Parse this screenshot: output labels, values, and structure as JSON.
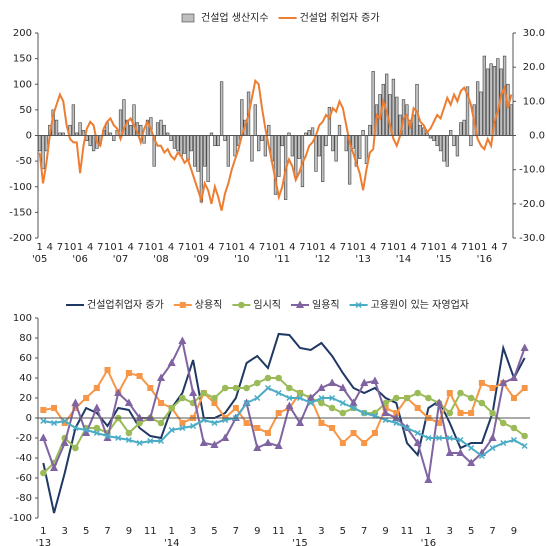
{
  "chart_data": [
    {
      "type": "combo",
      "categories": [
        "1",
        null,
        null,
        "4",
        null,
        null,
        "7",
        null,
        null,
        "10",
        null,
        null,
        "1",
        null,
        null,
        "4",
        null,
        null,
        "7",
        null,
        null,
        "10",
        null,
        null,
        "1",
        null,
        null,
        "4",
        null,
        null,
        "7",
        null,
        null,
        "10",
        null,
        null,
        "1",
        null,
        null,
        "4",
        null,
        null,
        "7",
        null,
        null,
        "10",
        null,
        null,
        "1",
        null,
        null,
        "4",
        null,
        null,
        "7",
        null,
        null,
        "10",
        null,
        null,
        "1",
        null,
        null,
        "4",
        null,
        null,
        "7",
        null,
        null,
        "10",
        null,
        null,
        "1",
        null,
        null,
        "4",
        null,
        null,
        "7",
        null,
        null,
        "10",
        null,
        null,
        "1",
        null,
        null,
        "4",
        null,
        null,
        "7",
        null,
        null,
        "10",
        null,
        null,
        "1",
        null,
        null,
        "4",
        null,
        null,
        "7",
        null,
        null,
        "10",
        null,
        null,
        "1",
        null,
        null,
        "4",
        null,
        null,
        "7",
        null,
        null,
        "10",
        null,
        null,
        "1",
        null,
        null,
        "4",
        null,
        null,
        "7",
        null,
        null,
        "10",
        null,
        null,
        "1",
        null,
        null,
        "4",
        null,
        null,
        "7",
        null,
        null
      ],
      "years": [
        "'05",
        null,
        null,
        null,
        null,
        null,
        null,
        null,
        null,
        null,
        null,
        null,
        "'06",
        null,
        null,
        null,
        null,
        null,
        null,
        null,
        null,
        null,
        null,
        null,
        "'07",
        null,
        null,
        null,
        null,
        null,
        null,
        null,
        null,
        null,
        null,
        null,
        "'08",
        null,
        null,
        null,
        null,
        null,
        null,
        null,
        null,
        null,
        null,
        null,
        "'09",
        null,
        null,
        null,
        null,
        null,
        null,
        null,
        null,
        null,
        null,
        null,
        "'10",
        null,
        null,
        null,
        null,
        null,
        null,
        null,
        null,
        null,
        null,
        null,
        "'11",
        null,
        null,
        null,
        null,
        null,
        null,
        null,
        null,
        null,
        null,
        null,
        "'12",
        null,
        null,
        null,
        null,
        null,
        null,
        null,
        null,
        null,
        null,
        null,
        "'13",
        null,
        null,
        null,
        null,
        null,
        null,
        null,
        null,
        null,
        null,
        null,
        "'14",
        null,
        null,
        null,
        null,
        null,
        null,
        null,
        null,
        null,
        null,
        null,
        "'15",
        null,
        null,
        null,
        null,
        null,
        null,
        null,
        null,
        null,
        null,
        null,
        "'16",
        null,
        null,
        null,
        null,
        null,
        null,
        null,
        null
      ],
      "series": [
        {
          "name": "건설업 생산지수",
          "type": "bar",
          "color": "#bfbfbf",
          "values": [
            -30,
            -65,
            -30,
            20,
            50,
            30,
            5,
            5,
            0,
            20,
            60,
            5,
            25,
            10,
            -10,
            -20,
            -30,
            -25,
            -15,
            10,
            25,
            5,
            -10,
            10,
            50,
            70,
            30,
            20,
            60,
            25,
            20,
            -15,
            30,
            35,
            -60,
            25,
            30,
            20,
            5,
            -10,
            -25,
            -30,
            -40,
            -35,
            -50,
            -30,
            -60,
            -70,
            -130,
            -60,
            -90,
            5,
            -20,
            -20,
            105,
            -10,
            -60,
            0,
            -40,
            -20,
            70,
            30,
            85,
            -50,
            60,
            -30,
            -10,
            -40,
            20,
            -50,
            -115,
            -80,
            -20,
            -125,
            5,
            -40,
            -80,
            -45,
            -100,
            5,
            10,
            15,
            -70,
            -40,
            -90,
            -20,
            55,
            -30,
            -50,
            20,
            0,
            -30,
            -95,
            -25,
            -60,
            -45,
            10,
            -55,
            20,
            125,
            60,
            80,
            100,
            120,
            80,
            110,
            75,
            40,
            70,
            60,
            30,
            40,
            100,
            20,
            15,
            5,
            -5,
            -10,
            -20,
            -30,
            -50,
            -60,
            10,
            -20,
            -40,
            25,
            30,
            95,
            -20,
            60,
            105,
            85,
            155,
            130,
            140,
            135,
            150,
            130,
            155,
            100,
            60
          ]
        },
        {
          "name": "건설업 취업자 증가",
          "type": "line",
          "axis": "y2",
          "color": "#ed7d31",
          "values": [
            -5,
            -14,
            -8,
            0,
            6,
            9,
            12,
            10,
            3,
            -1,
            -2,
            -2,
            -11,
            -3,
            2,
            4,
            3,
            -2,
            -3,
            2,
            4,
            5,
            3,
            2,
            -1,
            2,
            4,
            5,
            3,
            1,
            -2,
            2,
            4,
            2,
            -1,
            -3,
            -3,
            -5,
            -4,
            -6,
            -7,
            -5,
            -6,
            -8,
            -7,
            -10,
            -13,
            -16,
            -19,
            -14,
            -16,
            -20,
            -15,
            -18,
            -22,
            -17,
            -14,
            -10,
            -7,
            -4,
            0,
            3,
            6,
            11,
            16,
            15,
            8,
            2,
            -3,
            -8,
            -13,
            -18,
            -15,
            -10,
            -7,
            -9,
            -13,
            -11,
            -8,
            -6,
            -3,
            -2,
            0,
            3,
            4,
            6,
            5,
            8,
            7,
            10,
            8,
            3,
            -2,
            -5,
            -8,
            -11,
            -16,
            -10,
            -5,
            -4,
            6,
            5,
            10,
            7,
            3,
            -1,
            -3,
            0,
            5,
            6,
            2,
            8,
            7,
            4,
            3,
            1,
            2,
            4,
            6,
            5,
            8,
            11,
            9,
            12,
            10,
            13,
            14,
            12,
            9,
            4,
            -1,
            -3,
            -4,
            -1,
            -3,
            4,
            7,
            12,
            14,
            8,
            12
          ]
        }
      ],
      "ylim": [
        -200,
        200
      ],
      "yticks": [
        -200,
        -150,
        -100,
        -50,
        0,
        50,
        100,
        150,
        200
      ],
      "y2lim": [
        -30,
        30
      ],
      "y2ticks": [
        {
          "value": -30,
          "label": "-30.0"
        },
        {
          "value": -20,
          "label": "-20.0"
        },
        {
          "value": -10,
          "label": "-10.0"
        },
        {
          "value": 0,
          "label": "0.0"
        },
        {
          "value": 10,
          "label": "10.0"
        },
        {
          "value": 20,
          "label": "20.0"
        },
        {
          "value": 30,
          "label": "30.0"
        }
      ]
    },
    {
      "type": "line",
      "categories": [
        "1",
        null,
        "3",
        null,
        "5",
        null,
        "7",
        null,
        "9",
        null,
        "11",
        null,
        "1",
        null,
        "3",
        null,
        "5",
        null,
        "7",
        null,
        "9",
        null,
        "11",
        null,
        "1",
        null,
        "3",
        null,
        "5",
        null,
        "7",
        null,
        "9",
        null,
        "11",
        null,
        "1",
        null,
        "3",
        null,
        "5",
        null,
        "7",
        null,
        "9",
        null
      ],
      "years": [
        "'13",
        null,
        null,
        null,
        null,
        null,
        null,
        null,
        null,
        null,
        null,
        null,
        "'14",
        null,
        null,
        null,
        null,
        null,
        null,
        null,
        null,
        null,
        null,
        null,
        "'15",
        null,
        null,
        null,
        null,
        null,
        null,
        null,
        null,
        null,
        null,
        null,
        "'16",
        null,
        null,
        null,
        null,
        null,
        null,
        null,
        null,
        null
      ],
      "series": [
        {
          "name": "건설업취업자 증가",
          "color": "#1f3864",
          "marker": "none",
          "values": [
            -45,
            -95,
            -55,
            -10,
            10,
            5,
            -8,
            10,
            8,
            -10,
            -18,
            -20,
            10,
            25,
            58,
            0,
            0,
            5,
            20,
            55,
            62,
            50,
            84,
            83,
            70,
            68,
            75,
            62,
            45,
            30,
            25,
            30,
            20,
            15,
            -25,
            -37,
            10,
            17,
            -5,
            -30,
            -25,
            -25,
            5,
            70,
            40,
            60
          ]
        },
        {
          "name": "상용직",
          "color": "#f79646",
          "marker": "square",
          "values": [
            8,
            10,
            -5,
            10,
            20,
            30,
            48,
            25,
            45,
            42,
            30,
            15,
            10,
            -5,
            0,
            25,
            15,
            0,
            10,
            -5,
            -10,
            -15,
            5,
            10,
            25,
            20,
            -5,
            -10,
            -25,
            -15,
            -25,
            -15,
            10,
            5,
            20,
            10,
            0,
            -5,
            25,
            5,
            5,
            35,
            30,
            35,
            20,
            30
          ]
        },
        {
          "name": "임시직",
          "color": "#9bbb59",
          "marker": "circle",
          "values": [
            -55,
            -45,
            -20,
            -30,
            -10,
            -10,
            -15,
            0,
            -15,
            -5,
            0,
            -5,
            10,
            20,
            15,
            25,
            20,
            30,
            30,
            30,
            35,
            40,
            40,
            30,
            25,
            20,
            15,
            10,
            5,
            10,
            5,
            5,
            15,
            20,
            20,
            25,
            20,
            15,
            5,
            25,
            20,
            15,
            5,
            -5,
            -10,
            -18
          ]
        },
        {
          "name": "일용직",
          "color": "#8064a2",
          "marker": "triangle",
          "values": [
            -20,
            -50,
            -25,
            15,
            -15,
            10,
            -20,
            25,
            15,
            0,
            0,
            40,
            55,
            77,
            25,
            -25,
            -27,
            -20,
            0,
            15,
            -30,
            -25,
            -28,
            12,
            -5,
            20,
            30,
            35,
            30,
            15,
            35,
            37,
            5,
            0,
            -10,
            -25,
            -62,
            15,
            -35,
            -35,
            -45,
            -35,
            -20,
            35,
            40,
            70
          ]
        },
        {
          "name": "고용원이 있는 자영업자",
          "color": "#4bacc6",
          "marker": "x",
          "values": [
            -3,
            -5,
            -3,
            -10,
            -12,
            -15,
            -18,
            -20,
            -22,
            -25,
            -23,
            -23,
            -12,
            -10,
            -8,
            -2,
            -5,
            -2,
            0,
            15,
            20,
            30,
            25,
            20,
            20,
            15,
            20,
            20,
            15,
            10,
            5,
            2,
            -2,
            -5,
            -10,
            -15,
            -20,
            -20,
            -20,
            -22,
            -30,
            -38,
            -30,
            -25,
            -22,
            -28
          ]
        }
      ],
      "ylim": [
        -100,
        100
      ],
      "yticks": [
        -100,
        -80,
        -60,
        -40,
        -20,
        0,
        20,
        40,
        60,
        80,
        100
      ]
    }
  ]
}
